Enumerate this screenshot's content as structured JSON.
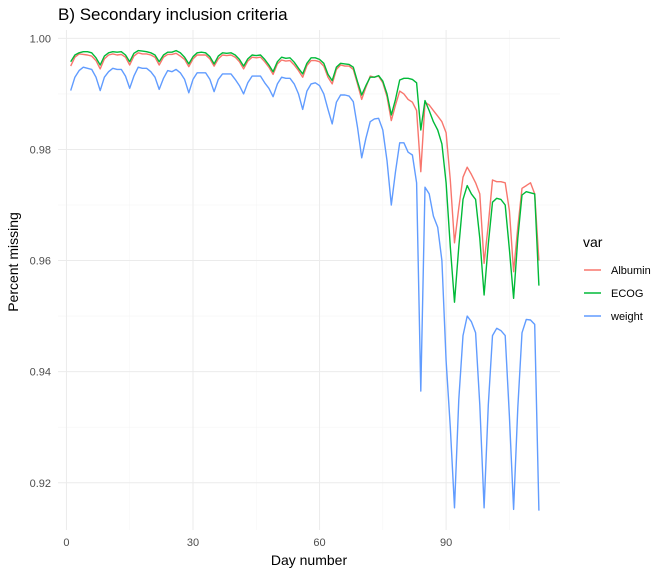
{
  "chart_data": {
    "type": "line",
    "title": "B) Secondary inclusion criteria",
    "xlabel": "Day number",
    "ylabel": "Percent missing",
    "xlim": [
      -2,
      117
    ],
    "ylim": [
      0.9115,
      1.0015
    ],
    "x_ticks": [
      0,
      30,
      60,
      90
    ],
    "y_ticks": [
      0.92,
      0.94,
      0.96,
      0.98,
      1.0
    ],
    "x_tick_labels": [
      "0",
      "30",
      "60",
      "90"
    ],
    "y_tick_labels": [
      "0.92",
      "0.94",
      "0.96",
      "0.98",
      "1.00"
    ],
    "grid": true,
    "legend": {
      "title": "var",
      "position": "right"
    },
    "x": [
      1,
      2,
      3,
      4,
      5,
      6,
      7,
      8,
      9,
      10,
      11,
      12,
      13,
      14,
      15,
      16,
      17,
      18,
      19,
      20,
      21,
      22,
      23,
      24,
      25,
      26,
      27,
      28,
      29,
      30,
      31,
      32,
      33,
      34,
      35,
      36,
      37,
      38,
      39,
      40,
      41,
      42,
      43,
      44,
      45,
      46,
      47,
      48,
      49,
      50,
      51,
      52,
      53,
      54,
      55,
      56,
      57,
      58,
      59,
      60,
      61,
      62,
      63,
      64,
      65,
      66,
      67,
      68,
      69,
      70,
      71,
      72,
      73,
      74,
      75,
      76,
      77,
      78,
      79,
      80,
      81,
      82,
      83,
      84,
      85,
      86,
      87,
      88,
      89,
      90,
      91,
      92,
      93,
      94,
      95,
      96,
      97,
      98,
      99,
      100,
      101,
      102,
      103,
      104,
      105,
      106,
      107,
      108,
      109,
      110,
      111,
      112
    ],
    "series": [
      {
        "name": "Albumin",
        "color": "#F8766D",
        "values": [
          0.995,
          0.9966,
          0.9972,
          0.9971,
          0.997,
          0.9968,
          0.996,
          0.9945,
          0.9963,
          0.997,
          0.9972,
          0.997,
          0.9971,
          0.9966,
          0.9952,
          0.9968,
          0.9974,
          0.9972,
          0.9972,
          0.997,
          0.9966,
          0.9952,
          0.9966,
          0.9971,
          0.9971,
          0.9973,
          0.9968,
          0.9962,
          0.9949,
          0.9963,
          0.997,
          0.997,
          0.997,
          0.9963,
          0.995,
          0.9963,
          0.997,
          0.9969,
          0.997,
          0.9966,
          0.9958,
          0.9945,
          0.9959,
          0.9966,
          0.9965,
          0.9966,
          0.9958,
          0.9948,
          0.9935,
          0.9954,
          0.9961,
          0.9959,
          0.996,
          0.9952,
          0.9942,
          0.993,
          0.9951,
          0.996,
          0.996,
          0.9958,
          0.995,
          0.993,
          0.9918,
          0.9944,
          0.9952,
          0.995,
          0.995,
          0.9944,
          0.9918,
          0.989,
          0.9912,
          0.9932,
          0.993,
          0.9932,
          0.992,
          0.9895,
          0.9852,
          0.988,
          0.9905,
          0.99,
          0.989,
          0.9885,
          0.987,
          0.976,
          0.9885,
          0.988,
          0.987,
          0.986,
          0.985,
          0.983,
          0.9745,
          0.9632,
          0.9695,
          0.975,
          0.9768,
          0.9755,
          0.974,
          0.972,
          0.9595,
          0.9665,
          0.9745,
          0.9742,
          0.9742,
          0.974,
          0.969,
          0.958,
          0.966,
          0.973,
          0.9735,
          0.974,
          0.972,
          0.96
        ],
        "x": [
          1,
          2,
          3,
          4,
          5,
          6,
          7,
          8,
          9,
          10,
          11,
          12,
          13,
          14,
          15,
          16,
          17,
          18,
          19,
          20,
          21,
          22,
          23,
          24,
          25,
          26,
          27,
          28,
          29,
          30,
          31,
          32,
          33,
          34,
          35,
          36,
          37,
          38,
          39,
          40,
          41,
          42,
          43,
          44,
          45,
          46,
          47,
          48,
          49,
          50,
          51,
          52,
          53,
          54,
          55,
          56,
          57,
          58,
          59,
          60,
          61,
          62,
          63,
          64,
          65,
          66,
          67,
          68,
          69,
          70,
          71,
          72,
          73,
          74,
          75,
          76,
          77,
          78,
          79,
          80,
          81,
          82,
          83,
          84,
          85,
          86,
          87,
          88,
          89,
          90,
          91,
          92,
          93,
          94,
          95,
          96,
          97,
          98,
          99,
          100,
          101,
          102,
          103,
          104,
          105,
          106,
          107,
          108,
          109,
          110,
          111,
          112
        ]
      },
      {
        "name": "ECOG",
        "color": "#00BA38",
        "values": [
          0.9958,
          0.997,
          0.9974,
          0.9976,
          0.9976,
          0.9974,
          0.9965,
          0.9952,
          0.9968,
          0.9974,
          0.9976,
          0.9975,
          0.9976,
          0.997,
          0.9958,
          0.9973,
          0.9978,
          0.9977,
          0.9976,
          0.9974,
          0.997,
          0.9958,
          0.997,
          0.9975,
          0.9975,
          0.9978,
          0.9974,
          0.9966,
          0.9954,
          0.9967,
          0.9974,
          0.9975,
          0.9974,
          0.9967,
          0.9954,
          0.9968,
          0.9974,
          0.9973,
          0.9974,
          0.997,
          0.9962,
          0.995,
          0.9963,
          0.997,
          0.9969,
          0.997,
          0.9962,
          0.9952,
          0.994,
          0.9958,
          0.9966,
          0.9964,
          0.9965,
          0.9957,
          0.9946,
          0.9936,
          0.9955,
          0.9965,
          0.9965,
          0.9962,
          0.9955,
          0.9935,
          0.9924,
          0.9948,
          0.9955,
          0.9954,
          0.9953,
          0.9948,
          0.9922,
          0.9898,
          0.9915,
          0.993,
          0.993,
          0.9933,
          0.9923,
          0.99,
          0.9862,
          0.989,
          0.9925,
          0.9928,
          0.9928,
          0.9926,
          0.992,
          0.9835,
          0.9888,
          0.987,
          0.985,
          0.9835,
          0.981,
          0.974,
          0.9625,
          0.9525,
          0.9625,
          0.971,
          0.9735,
          0.972,
          0.971,
          0.964,
          0.9538,
          0.963,
          0.9705,
          0.9712,
          0.971,
          0.97,
          0.962,
          0.9532,
          0.964,
          0.9718,
          0.9724,
          0.9722,
          0.972,
          0.9555
        ],
        "x": [
          1,
          2,
          3,
          4,
          5,
          6,
          7,
          8,
          9,
          10,
          11,
          12,
          13,
          14,
          15,
          16,
          17,
          18,
          19,
          20,
          21,
          22,
          23,
          24,
          25,
          26,
          27,
          28,
          29,
          30,
          31,
          32,
          33,
          34,
          35,
          36,
          37,
          38,
          39,
          40,
          41,
          42,
          43,
          44,
          45,
          46,
          47,
          48,
          49,
          50,
          51,
          52,
          53,
          54,
          55,
          56,
          57,
          58,
          59,
          60,
          61,
          62,
          63,
          64,
          65,
          66,
          67,
          68,
          69,
          70,
          71,
          72,
          73,
          74,
          75,
          76,
          77,
          78,
          79,
          80,
          81,
          82,
          83,
          84,
          85,
          86,
          87,
          88,
          89,
          90,
          91,
          92,
          93,
          94,
          95,
          96,
          97,
          98,
          99,
          100,
          101,
          102,
          103,
          104,
          105,
          106,
          107,
          108,
          109,
          110,
          111,
          112
        ]
      },
      {
        "name": "weight",
        "color": "#619CFF",
        "values": [
          0.9906,
          0.993,
          0.9942,
          0.9948,
          0.9946,
          0.9944,
          0.993,
          0.9906,
          0.993,
          0.994,
          0.9946,
          0.9944,
          0.9944,
          0.9932,
          0.991,
          0.9932,
          0.9948,
          0.9946,
          0.9946,
          0.994,
          0.993,
          0.9908,
          0.9928,
          0.9942,
          0.994,
          0.9944,
          0.9938,
          0.9926,
          0.9902,
          0.9926,
          0.9938,
          0.9938,
          0.9938,
          0.9926,
          0.9904,
          0.9926,
          0.9936,
          0.9936,
          0.9936,
          0.9926,
          0.9915,
          0.99,
          0.992,
          0.9932,
          0.9932,
          0.9932,
          0.992,
          0.991,
          0.9895,
          0.9918,
          0.993,
          0.9928,
          0.9928,
          0.9918,
          0.99,
          0.9872,
          0.9905,
          0.9918,
          0.992,
          0.9915,
          0.99,
          0.9872,
          0.9846,
          0.9885,
          0.9898,
          0.9898,
          0.9896,
          0.9886,
          0.984,
          0.9785,
          0.982,
          0.985,
          0.9855,
          0.9856,
          0.9835,
          0.978,
          0.97,
          0.976,
          0.9812,
          0.9812,
          0.9795,
          0.979,
          0.974,
          0.9365,
          0.9732,
          0.972,
          0.968,
          0.966,
          0.96,
          0.942,
          0.93,
          0.9155,
          0.935,
          0.9465,
          0.95,
          0.949,
          0.947,
          0.934,
          0.9155,
          0.934,
          0.9465,
          0.9478,
          0.9474,
          0.9465,
          0.932,
          0.9152,
          0.9335,
          0.947,
          0.9494,
          0.9493,
          0.9485,
          0.915
        ],
        "x": [
          1,
          2,
          3,
          4,
          5,
          6,
          7,
          8,
          9,
          10,
          11,
          12,
          13,
          14,
          15,
          16,
          17,
          18,
          19,
          20,
          21,
          22,
          23,
          24,
          25,
          26,
          27,
          28,
          29,
          30,
          31,
          32,
          33,
          34,
          35,
          36,
          37,
          38,
          39,
          40,
          41,
          42,
          43,
          44,
          45,
          46,
          47,
          48,
          49,
          50,
          51,
          52,
          53,
          54,
          55,
          56,
          57,
          58,
          59,
          60,
          61,
          62,
          63,
          64,
          65,
          66,
          67,
          68,
          69,
          70,
          71,
          72,
          73,
          74,
          75,
          76,
          77,
          78,
          79,
          80,
          81,
          82,
          83,
          84,
          85,
          86,
          87,
          88,
          89,
          90,
          91,
          92,
          93,
          94,
          95,
          96,
          97,
          98,
          99,
          100,
          101,
          102,
          103,
          104,
          105,
          106,
          107,
          108,
          109,
          110,
          111,
          112
        ]
      }
    ]
  }
}
